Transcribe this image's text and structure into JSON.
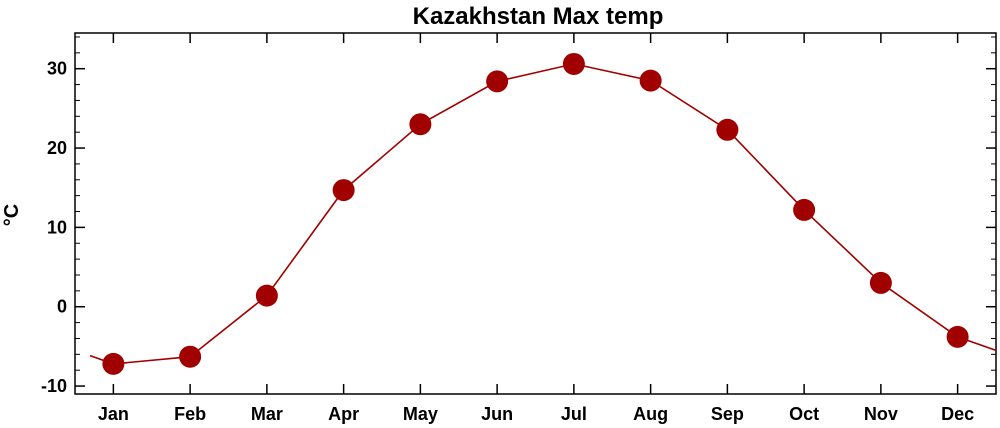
{
  "chart_data": {
    "type": "line",
    "title": "Kazakhstan Max temp",
    "xlabel": "",
    "ylabel": "°C",
    "categories": [
      "Jan",
      "Feb",
      "Mar",
      "Apr",
      "May",
      "Jun",
      "Jul",
      "Aug",
      "Sep",
      "Oct",
      "Nov",
      "Dec"
    ],
    "series": [
      {
        "values": [
          -7.2,
          -6.3,
          1.4,
          14.7,
          23.0,
          28.4,
          30.6,
          28.5,
          22.3,
          12.2,
          3.0,
          -3.8
        ]
      }
    ],
    "ylim": [
      -11,
      34.5
    ],
    "yticks": [
      -10,
      0,
      10,
      20,
      30
    ],
    "grid": false,
    "legend": "none",
    "colors": {
      "line": "#a00000",
      "marker": "#a00000",
      "axis": "#000000"
    }
  }
}
